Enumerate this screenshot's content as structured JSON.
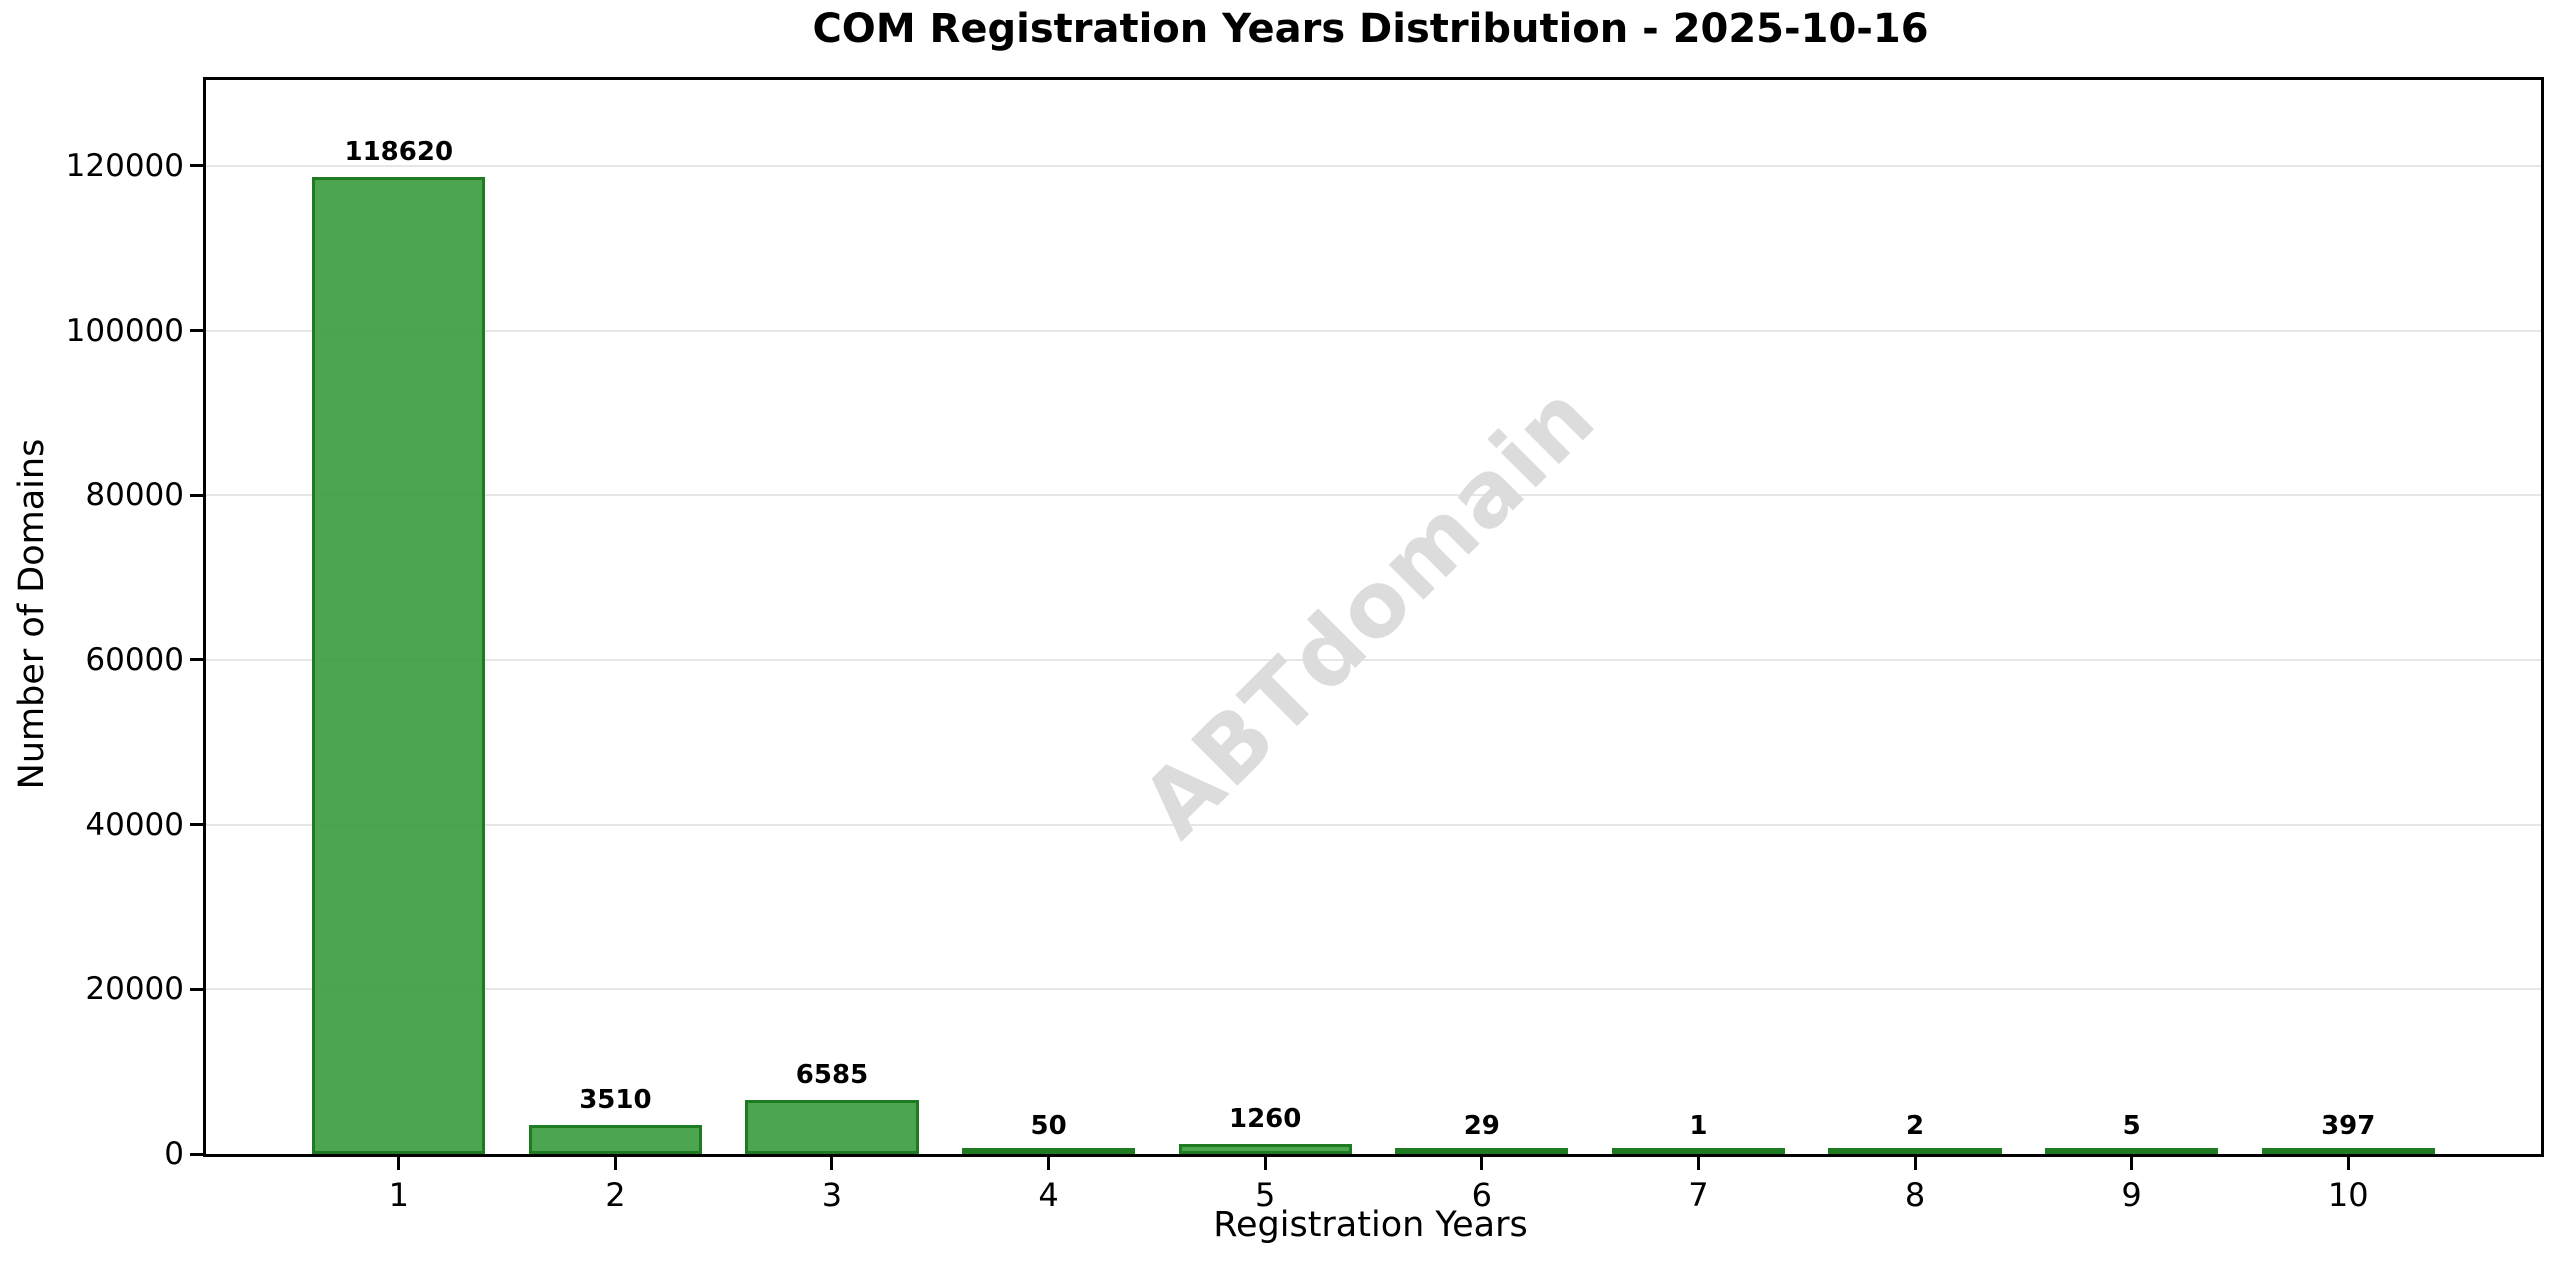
{
  "chart_data": {
    "type": "bar",
    "title": "COM Registration Years Distribution - 2025-10-16",
    "xlabel": "Registration Years",
    "ylabel": "Number of Domains",
    "categories": [
      1,
      2,
      3,
      4,
      5,
      6,
      7,
      8,
      9,
      10
    ],
    "values": [
      118620,
      3510,
      6585,
      50,
      1260,
      29,
      1,
      2,
      5,
      397
    ],
    "yticks": [
      0,
      20000,
      40000,
      60000,
      80000,
      100000,
      120000
    ],
    "ylim": [
      0,
      130445
    ],
    "xlim": [
      0.11,
      10.89
    ],
    "bar_width_units": 0.8,
    "grid": "horizontal",
    "legend": "none",
    "watermark": "ABTdomain",
    "colors": {
      "bar_fill": "#3D9E40",
      "bar_fill_alpha": 0.92,
      "bar_edge": "#1E7B21",
      "grid": "#E6E6E6",
      "watermark": "#DCDCDC",
      "text": "#000000",
      "background": "#FFFFFF"
    }
  }
}
